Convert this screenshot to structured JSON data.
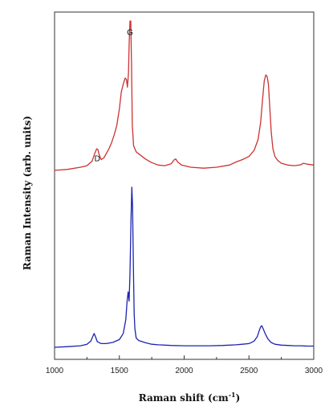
{
  "chart_data": {
    "type": "line",
    "xlabel": "Raman shift (cm",
    "xlabel_sup": "-1",
    "xlabel_end": ")",
    "ylabel": "Raman Intensity (arb. units)",
    "xlim": [
      1000,
      3000
    ],
    "ylim": [
      0,
      10.5
    ],
    "grid": false,
    "xticks": [
      1000,
      1500,
      2000,
      2500,
      3000
    ],
    "annotations": [
      {
        "text": "D",
        "x": 1330,
        "y": 6.05
      },
      {
        "text": "G",
        "x": 1582,
        "y": 10.15
      }
    ],
    "series": [
      {
        "color": "#cc3333",
        "x": [
          1000,
          1100,
          1200,
          1250,
          1290,
          1310,
          1325,
          1335,
          1345,
          1360,
          1380,
          1400,
          1420,
          1440,
          1460,
          1480,
          1500,
          1515,
          1530,
          1545,
          1555,
          1562,
          1570,
          1576,
          1582,
          1588,
          1594,
          1600,
          1610,
          1630,
          1660,
          1700,
          1750,
          1800,
          1850,
          1900,
          1920,
          1935,
          1950,
          1980,
          2050,
          2150,
          2250,
          2350,
          2400,
          2450,
          2500,
          2540,
          2570,
          2590,
          2605,
          2618,
          2630,
          2640,
          2650,
          2660,
          2672,
          2685,
          2700,
          2720,
          2750,
          2800,
          2850,
          2900,
          2920,
          2950,
          3000
        ],
        "y": [
          5.75,
          5.78,
          5.85,
          5.9,
          6.05,
          6.3,
          6.45,
          6.42,
          6.25,
          6.1,
          6.15,
          6.3,
          6.45,
          6.65,
          6.9,
          7.2,
          7.75,
          8.3,
          8.55,
          8.75,
          8.7,
          8.45,
          8.9,
          9.9,
          10.6,
          10.6,
          9.2,
          7.2,
          6.55,
          6.35,
          6.25,
          6.12,
          6.0,
          5.92,
          5.9,
          5.96,
          6.08,
          6.12,
          6.02,
          5.92,
          5.85,
          5.82,
          5.85,
          5.92,
          6.02,
          6.1,
          6.2,
          6.4,
          6.75,
          7.3,
          8.05,
          8.65,
          8.85,
          8.8,
          8.55,
          7.85,
          7.0,
          6.45,
          6.2,
          6.08,
          5.98,
          5.92,
          5.9,
          5.93,
          5.98,
          5.95,
          5.92
        ]
      },
      {
        "color": "#1c24b0",
        "x": [
          1000,
          1100,
          1200,
          1250,
          1280,
          1295,
          1305,
          1315,
          1330,
          1360,
          1400,
          1450,
          1500,
          1530,
          1550,
          1560,
          1568,
          1575,
          1582,
          1590,
          1596,
          1602,
          1608,
          1614,
          1620,
          1630,
          1650,
          1700,
          1750,
          1800,
          1900,
          2000,
          2100,
          2200,
          2300,
          2400,
          2450,
          2500,
          2540,
          2565,
          2580,
          2592,
          2600,
          2610,
          2625,
          2645,
          2670,
          2700,
          2750,
          2800,
          2850,
          2900,
          2950,
          3000
        ],
        "y": [
          0.0,
          0.02,
          0.05,
          0.1,
          0.2,
          0.35,
          0.45,
          0.35,
          0.18,
          0.12,
          0.12,
          0.16,
          0.25,
          0.45,
          0.9,
          1.5,
          1.8,
          1.5,
          2.4,
          4.2,
          5.2,
          4.6,
          2.7,
          1.1,
          0.6,
          0.3,
          0.22,
          0.15,
          0.1,
          0.08,
          0.06,
          0.05,
          0.05,
          0.05,
          0.06,
          0.08,
          0.1,
          0.12,
          0.2,
          0.35,
          0.55,
          0.68,
          0.7,
          0.6,
          0.45,
          0.28,
          0.16,
          0.1,
          0.07,
          0.06,
          0.05,
          0.05,
          0.04,
          0.04
        ]
      }
    ]
  }
}
